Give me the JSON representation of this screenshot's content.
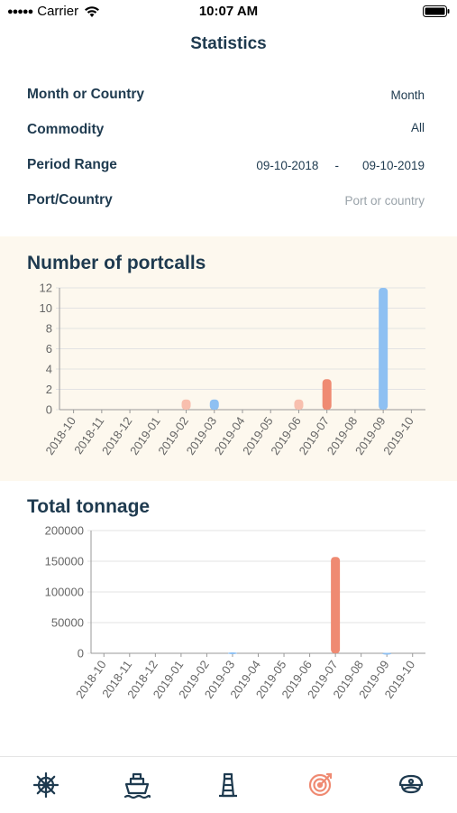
{
  "status_bar": {
    "carrier": "Carrier",
    "time": "10:07 AM"
  },
  "header": {
    "title": "Statistics"
  },
  "filters": {
    "month_or_country": {
      "label": "Month or Country",
      "value": "Month"
    },
    "commodity": {
      "label": "Commodity",
      "value": "All"
    },
    "period_range": {
      "label": "Period Range",
      "from": "09-10-2018",
      "separator": "-",
      "to": "09-10-2019"
    },
    "port_country": {
      "label": "Port/Country",
      "placeholder": "Port or country"
    }
  },
  "colors": {
    "blue": "#8ec0f2",
    "red": "#ef8a72",
    "pink": "#f8bfae",
    "navy": "#1e3a4f",
    "accent": "#ef8a72"
  },
  "chart_data": [
    {
      "type": "bar",
      "title": "Number of portcalls",
      "categories": [
        "2018-10",
        "2018-11",
        "2018-12",
        "2019-01",
        "2019-02",
        "2019-03",
        "2019-04",
        "2019-05",
        "2019-06",
        "2019-07",
        "2019-08",
        "2019-09",
        "2019-10"
      ],
      "values": [
        0,
        0,
        0,
        0,
        1,
        1,
        0,
        0,
        1,
        3,
        0,
        12,
        0
      ],
      "bar_colors": [
        "#8ec0f2",
        "#8ec0f2",
        "#8ec0f2",
        "#8ec0f2",
        "#f8bfae",
        "#8ec0f2",
        "#8ec0f2",
        "#8ec0f2",
        "#f8bfae",
        "#ef8a72",
        "#8ec0f2",
        "#8ec0f2",
        "#8ec0f2"
      ],
      "ylim": [
        0,
        12
      ],
      "yticks": [
        0,
        2,
        4,
        6,
        8,
        10,
        12
      ],
      "grid": true
    },
    {
      "type": "bar",
      "title": "Total tonnage",
      "categories": [
        "2018-10",
        "2018-11",
        "2018-12",
        "2019-01",
        "2019-02",
        "2019-03",
        "2019-04",
        "2019-05",
        "2019-06",
        "2019-07",
        "2019-08",
        "2019-09",
        "2019-10"
      ],
      "values": [
        0,
        0,
        0,
        0,
        0,
        1500,
        0,
        0,
        0,
        157000,
        0,
        800,
        0
      ],
      "bar_colors": [
        "#8ec0f2",
        "#8ec0f2",
        "#8ec0f2",
        "#8ec0f2",
        "#8ec0f2",
        "#8ec0f2",
        "#8ec0f2",
        "#8ec0f2",
        "#8ec0f2",
        "#ef8a72",
        "#8ec0f2",
        "#8ec0f2",
        "#8ec0f2"
      ],
      "ylim": [
        0,
        200000
      ],
      "yticks": [
        0,
        50000,
        100000,
        150000,
        200000
      ],
      "grid": true
    }
  ],
  "tabbar": {
    "active": "statistics",
    "tabs": [
      {
        "icon": "ship-wheel-icon"
      },
      {
        "icon": "ship-icon"
      },
      {
        "icon": "lighthouse-icon"
      },
      {
        "icon": "target-icon"
      },
      {
        "icon": "captain-hat-icon"
      }
    ]
  }
}
